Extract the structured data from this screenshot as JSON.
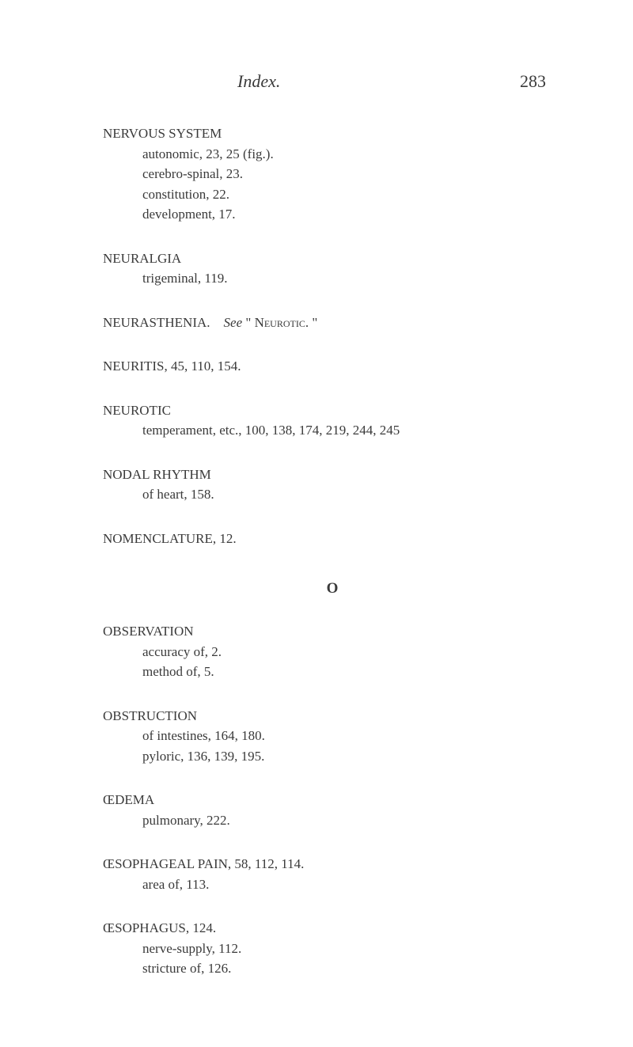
{
  "header": {
    "title": "Index.",
    "pageNumber": "283"
  },
  "entries": [
    {
      "main": "NERVOUS SYSTEM",
      "subs": [
        "autonomic, 23, 25 (fig.).",
        "cerebro-spinal, 23.",
        "constitution, 22.",
        "development, 17."
      ]
    },
    {
      "main": "NEURALGIA",
      "subs": [
        "trigeminal, 119."
      ]
    },
    {
      "main": "NEURASTHENIA.",
      "mainExtra": {
        "seeText": "See",
        "quoteOpen": " \" ",
        "quoteRef": "Neurotic.",
        "quoteClose": "\""
      },
      "subs": []
    },
    {
      "main": "NEURITIS, 45, 110, 154.",
      "subs": []
    },
    {
      "main": "NEUROTIC",
      "subs": [
        "temperament, etc., 100, 138, 174, 219, 244, 245"
      ]
    },
    {
      "main": "NODAL RHYTHM",
      "subs": [
        "of heart, 158."
      ]
    },
    {
      "main": "NOMENCLATURE, 12.",
      "subs": []
    }
  ],
  "sectionLetter": "O",
  "entriesO": [
    {
      "main": "OBSERVATION",
      "subs": [
        "accuracy of, 2.",
        "method of, 5."
      ]
    },
    {
      "main": "OBSTRUCTION",
      "subs": [
        "of intestines, 164, 180.",
        "pyloric, 136, 139, 195."
      ]
    },
    {
      "main": "ŒDEMA",
      "subs": [
        "pulmonary, 222."
      ]
    },
    {
      "main": "ŒSOPHAGEAL PAIN, 58, 112, 114.",
      "subs": [
        "area of, 113."
      ]
    },
    {
      "main": "ŒSOPHAGUS, 124.",
      "subs": [
        "nerve-supply, 112.",
        "stricture of, 126."
      ]
    }
  ]
}
